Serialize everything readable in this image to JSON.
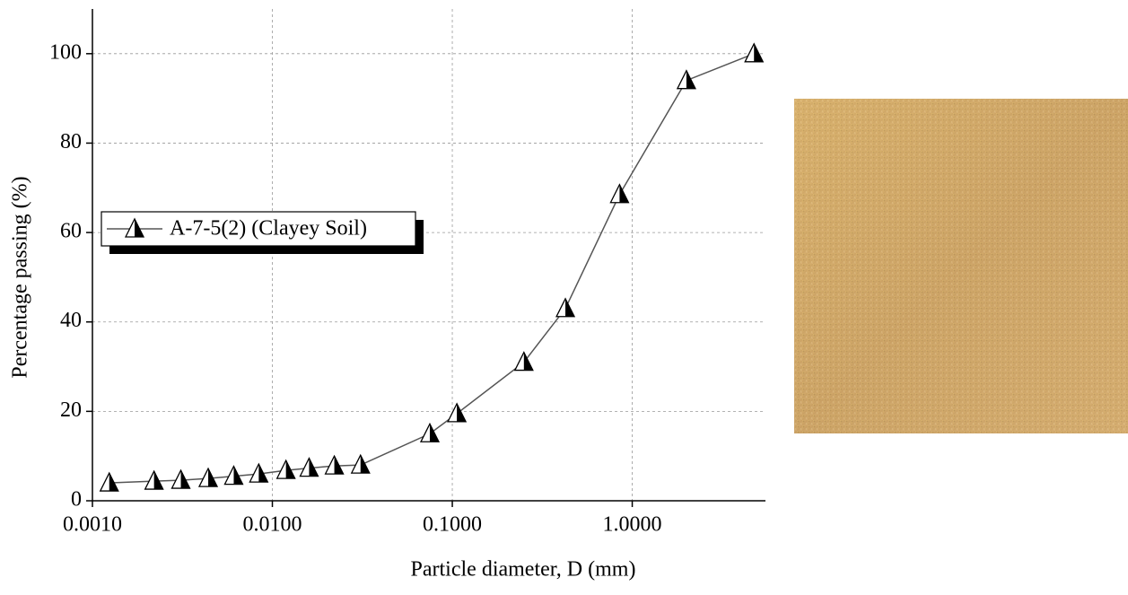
{
  "chart_data": {
    "type": "line",
    "x_label": "Particle diameter, D (mm)",
    "y_label": "Percentage passing (%)",
    "x": [
      0.00124,
      0.0022,
      0.0031,
      0.0044,
      0.0061,
      0.0084,
      0.0119,
      0.016,
      0.0221,
      0.0309,
      0.075,
      0.106,
      0.25,
      0.425,
      0.85,
      2.0,
      4.75
    ],
    "series": [
      {
        "name": "A-7-5(2) (Clayey Soil)",
        "color": "#555555",
        "values": [
          4.0,
          4.4,
          4.6,
          5.0,
          5.5,
          6.0,
          6.8,
          7.3,
          7.8,
          8.0,
          15,
          19.5,
          31,
          43,
          68.5,
          94,
          100
        ]
      }
    ],
    "xlim": [
      0.001,
      5.5
    ],
    "x_log": true,
    "xticks": [
      {
        "value": 0.001,
        "label": "0.0010"
      },
      {
        "value": 0.01,
        "label": "0.0100"
      },
      {
        "value": 0.1,
        "label": "0.1000"
      },
      {
        "value": 1,
        "label": "1.0000"
      }
    ],
    "ylim": [
      0,
      110
    ],
    "yticks": [
      0,
      20,
      40,
      60,
      80,
      100
    ],
    "grid": true,
    "legend": "center left"
  }
}
